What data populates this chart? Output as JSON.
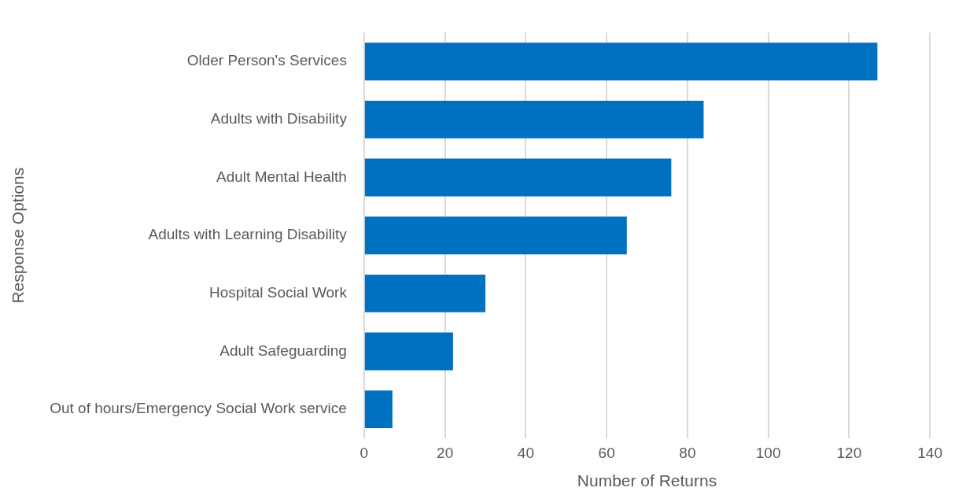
{
  "chart_data": {
    "type": "bar",
    "orientation": "horizontal",
    "xlabel": "Number of Returns",
    "ylabel": "Response Options",
    "categories": [
      "Older Person's Services",
      "Adults with Disability",
      "Adult Mental Health",
      "Adults with Learning Disability",
      "Hospital Social Work",
      "Adult Safeguarding",
      "Out of hours/Emergency Social Work service"
    ],
    "values": [
      127,
      84,
      76,
      65,
      30,
      22,
      7
    ],
    "color": "#0070c0",
    "xlim": [
      0,
      140
    ],
    "xticks": [
      0,
      20,
      40,
      60,
      80,
      100,
      120,
      140
    ],
    "grid": "x",
    "legend": false
  }
}
